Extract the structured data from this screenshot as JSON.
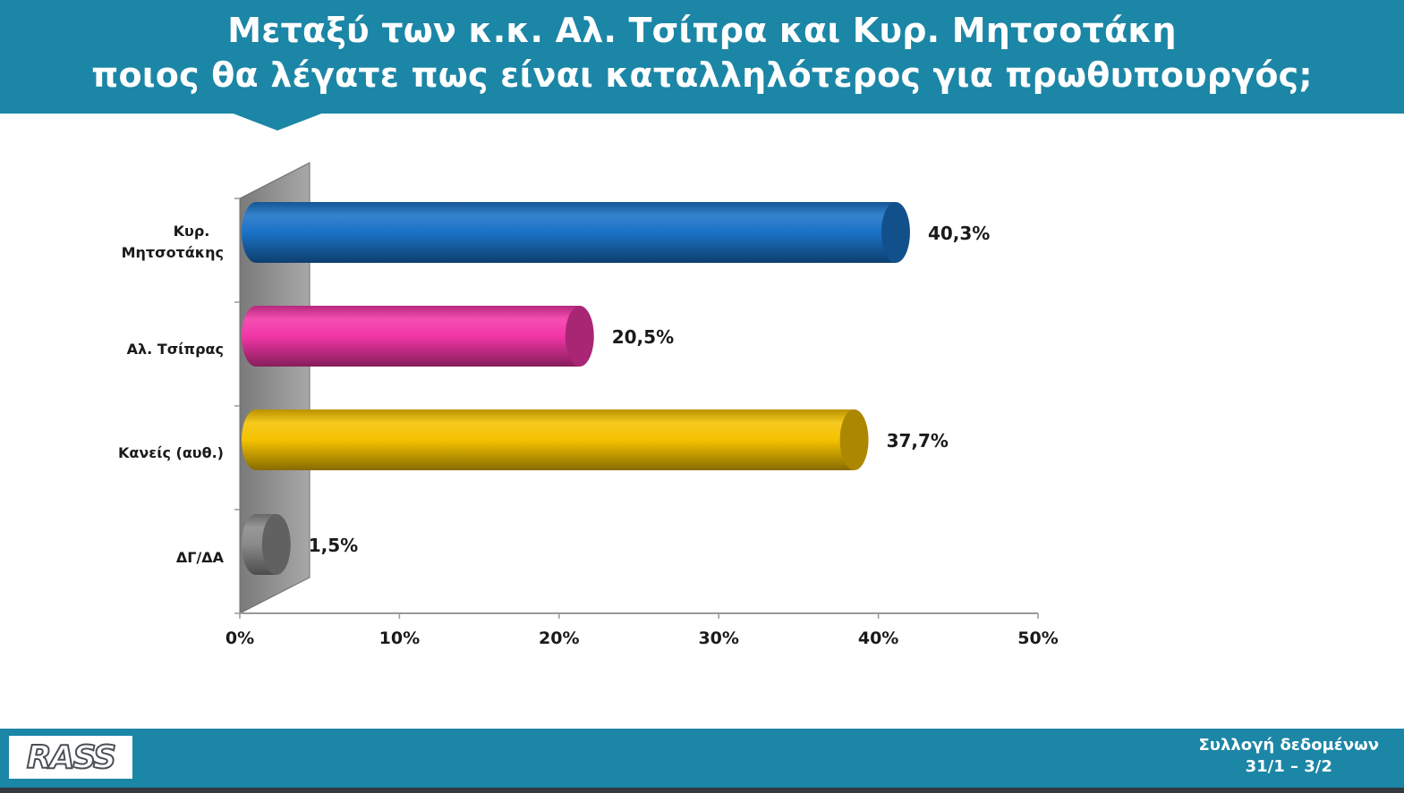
{
  "header": {
    "title_line1": "Μεταξύ των κ.κ. Αλ. Τσίπρα και Κυρ. Μητσοτάκη",
    "title_line2": "ποιος θα λέγατε πως είναι καταλληλότερος για πρωθυπουργός;"
  },
  "chart_data": {
    "type": "bar",
    "orientation": "horizontal",
    "categories": [
      [
        "Κυρ.",
        "Μητσοτάκης"
      ],
      [
        "Αλ. Τσίπρας"
      ],
      [
        "Κανείς (αυθ.)"
      ],
      [
        "ΔΓ/ΔΑ"
      ]
    ],
    "values": [
      40.3,
      20.5,
      37.7,
      1.5
    ],
    "value_labels": [
      "40,3%",
      "20,5%",
      "37,7%",
      "1,5%"
    ],
    "colors": [
      "#1a72c6",
      "#f236a6",
      "#f5c200",
      "#8a8a8a"
    ],
    "xlim": [
      0,
      50
    ],
    "ticks": [
      0,
      10,
      20,
      30,
      40,
      50
    ],
    "tick_labels": [
      "0%",
      "10%",
      "20%",
      "30%",
      "40%",
      "50%"
    ],
    "grid": false,
    "style": "3d-cylinder"
  },
  "footer": {
    "logo_text": "RASS",
    "collection_label": "Συλλογή δεδομένων",
    "collection_dates": "31/1 – 3/2"
  }
}
